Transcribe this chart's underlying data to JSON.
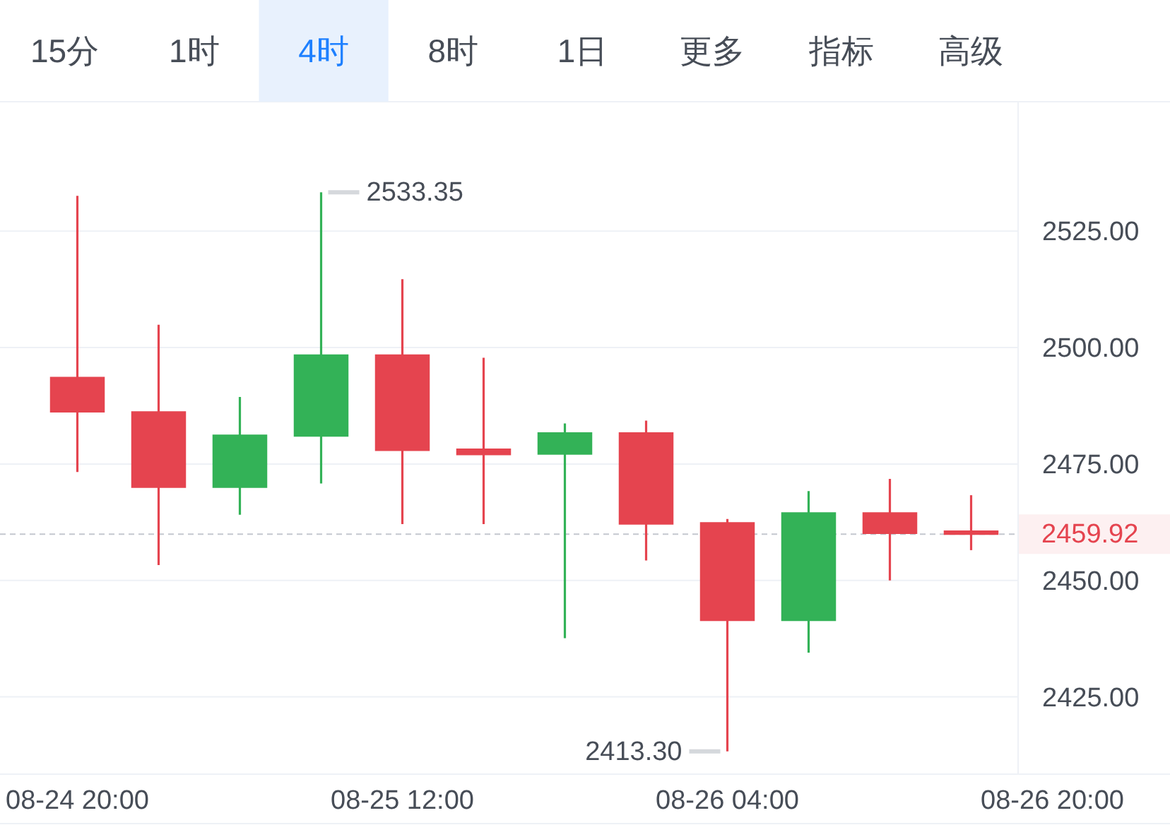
{
  "chart_data": {
    "type": "candlestick",
    "annotations": [
      "15分",
      "1时",
      "4时",
      "8时",
      "1日",
      "更多",
      "指标",
      "高级"
    ],
    "categories": [
      "08-24 20:00",
      null,
      null,
      null,
      "08-25 12:00",
      null,
      null,
      null,
      "08-26 04:00",
      null,
      null,
      null,
      "08-26 20:00"
    ],
    "ohlc": [
      [
        2493.6,
        2532.6,
        2473.3,
        2486.2
      ],
      [
        2486.2,
        2504.9,
        2453.3,
        2470.0
      ],
      [
        2470.0,
        2489.4,
        2464.1,
        2481.2
      ],
      [
        2481.0,
        2533.35,
        2470.8,
        2498.4
      ],
      [
        2498.4,
        2514.7,
        2462.1,
        2477.9
      ],
      [
        2478.2,
        2497.8,
        2462.1,
        2477.0
      ],
      [
        2477.1,
        2483.7,
        2437.6,
        2481.7
      ],
      [
        2481.7,
        2484.3,
        2454.3,
        2462.1
      ],
      [
        2462.4,
        2463.2,
        2413.3,
        2441.4
      ],
      [
        2441.4,
        2469.2,
        2434.5,
        2464.5
      ],
      [
        2464.5,
        2471.8,
        2450.0,
        2460.1
      ],
      [
        2460.6,
        2468.3,
        2456.5,
        2459.92
      ],
      null
    ],
    "value_labels": [
      null,
      null,
      null,
      "2533.35",
      null,
      null,
      null,
      null,
      "2413.30",
      null,
      null,
      null,
      null
    ],
    "colors": [
      "#e5444f",
      "#e5444f",
      "#33b257",
      "#33b257",
      "#e5444f",
      "#e5444f",
      "#33b257",
      "#e5444f",
      "#e5444f",
      "#33b257",
      "#e5444f",
      "#e5444f",
      null
    ],
    "ylim": [
      2408.4,
      2552.8
    ],
    "yticks": [
      {
        "value": 2425,
        "label": "2425.00"
      },
      {
        "value": 2450,
        "label": "2450.00"
      },
      {
        "value": 2475,
        "label": "2475.00"
      },
      {
        "value": 2500,
        "label": "2500.00"
      },
      {
        "value": 2525,
        "label": "2525.00"
      }
    ],
    "grid": "y",
    "ref_lines": [
      {
        "axis": "y",
        "value": 2459.92,
        "label": "2459.92",
        "color": "#c4c8cf",
        "line_style": "dashed"
      }
    ]
  }
}
